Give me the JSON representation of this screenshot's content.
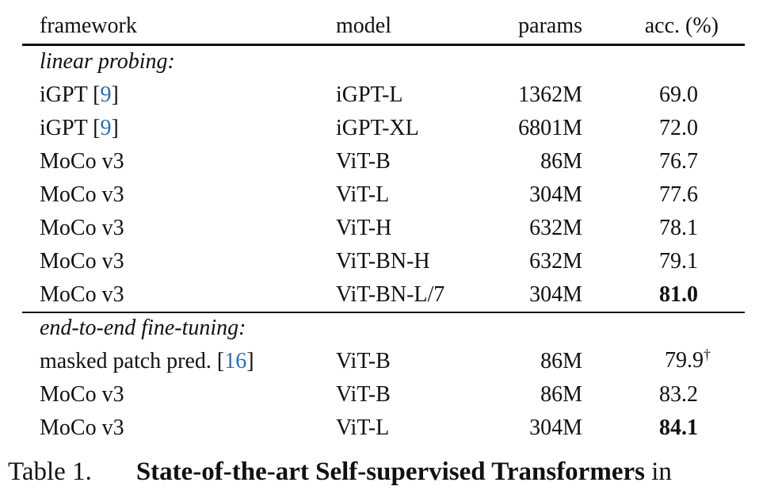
{
  "table": {
    "header": [
      "framework",
      "model",
      "params",
      "acc. (%)"
    ],
    "sections": [
      {
        "title": "linear probing:",
        "rows": [
          {
            "framework": [
              "iGPT [",
              "9",
              "]"
            ],
            "model": "iGPT-L",
            "params": "1362M",
            "acc": "69.0"
          },
          {
            "framework": [
              "iGPT [",
              "9",
              "]"
            ],
            "model": "iGPT-XL",
            "params": "6801M",
            "acc": "72.0"
          },
          {
            "framework": [
              "MoCo v3"
            ],
            "model": "ViT-B",
            "params": "86M",
            "acc": "76.7"
          },
          {
            "framework": [
              "MoCo v3"
            ],
            "model": "ViT-L",
            "params": "304M",
            "acc": "77.6"
          },
          {
            "framework": [
              "MoCo v3"
            ],
            "model": "ViT-H",
            "params": "632M",
            "acc": "78.1"
          },
          {
            "framework": [
              "MoCo v3"
            ],
            "model": "ViT-BN-H",
            "params": "632M",
            "acc": "79.1"
          },
          {
            "framework": [
              "MoCo v3"
            ],
            "model": "ViT-BN-L/7",
            "params": "304M",
            "acc": "81.0",
            "bold": true
          }
        ]
      },
      {
        "title": "end-to-end fine-tuning:",
        "rows": [
          {
            "framework": [
              "masked patch pred. [",
              "16",
              "]"
            ],
            "model": "ViT-B",
            "params": "86M",
            "acc": "79.9",
            "note": "†"
          },
          {
            "framework": [
              "MoCo v3"
            ],
            "model": "ViT-B",
            "params": "86M",
            "acc": "83.2"
          },
          {
            "framework": [
              "MoCo v3"
            ],
            "model": "ViT-L",
            "params": "304M",
            "acc": "84.1",
            "bold": true
          }
        ]
      }
    ],
    "caption": {
      "label": "Table 1.",
      "title": "State-of-the-art Self-supervised Transformers",
      "text": "in"
    }
  }
}
